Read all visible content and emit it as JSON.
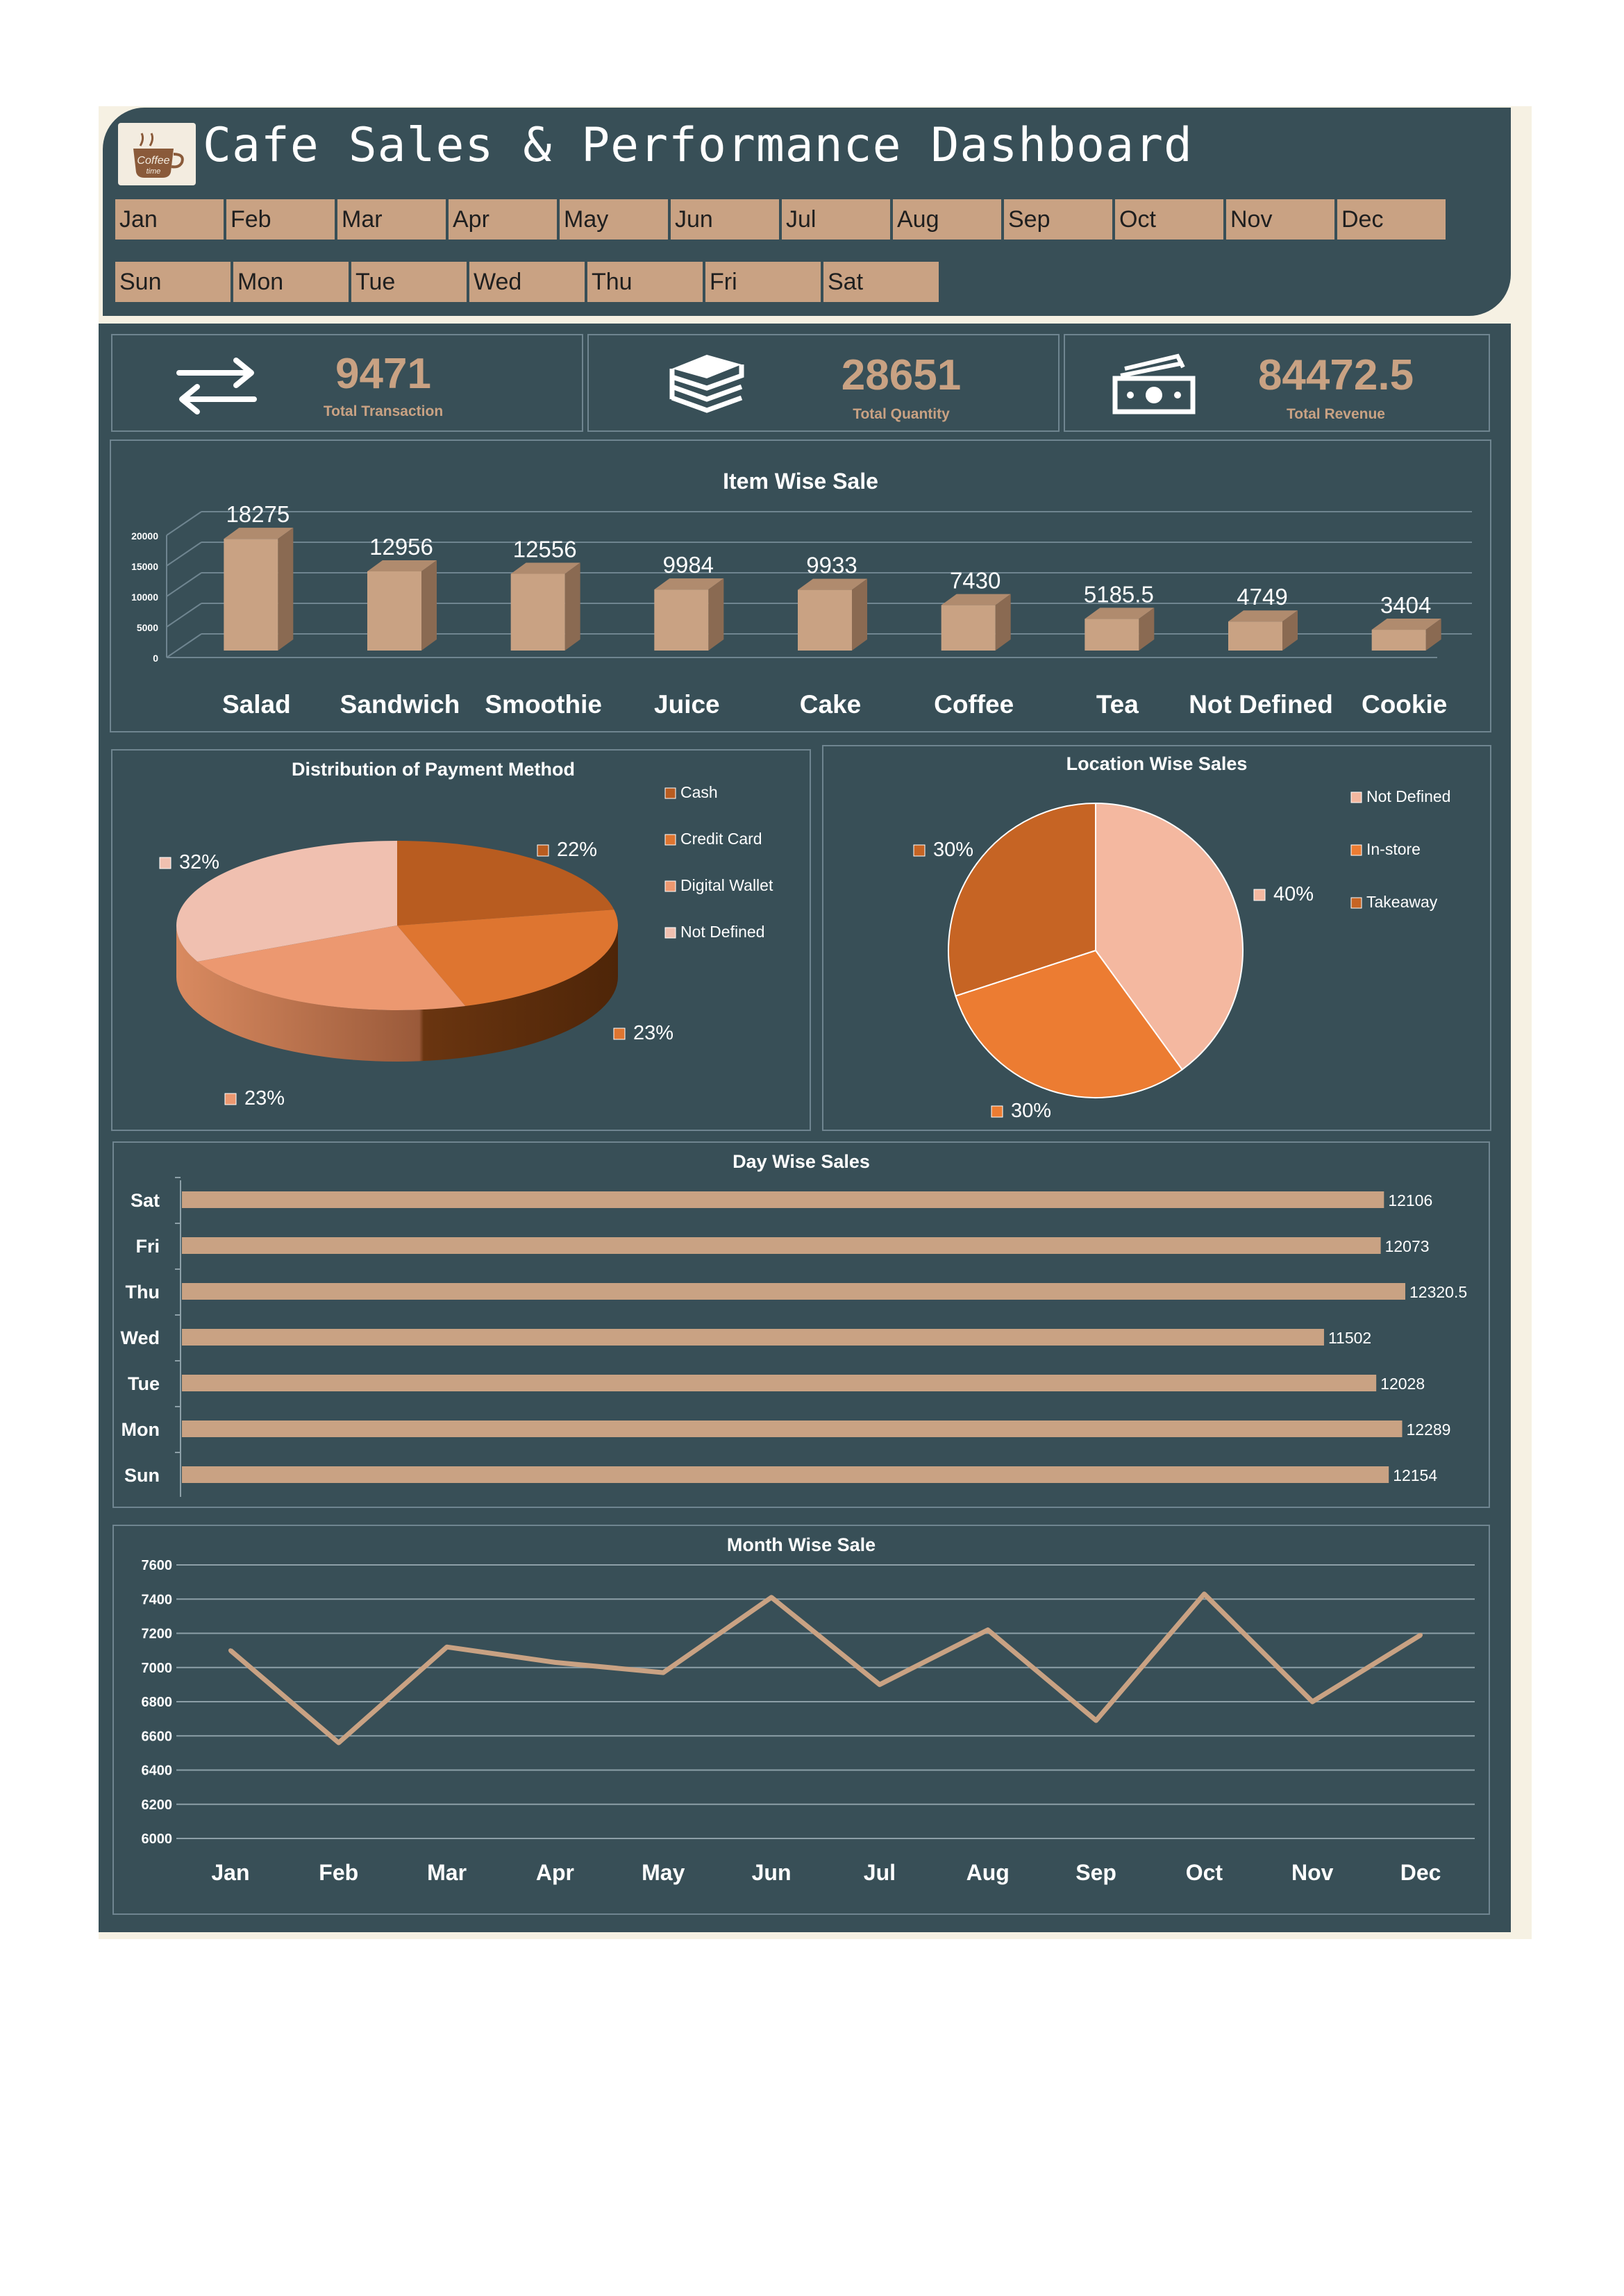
{
  "header": {
    "title": "Cafe Sales & Performance Dashboard",
    "logo_text_top": "Coffee",
    "logo_text_bottom": "time"
  },
  "slicers": {
    "months": [
      "Jan",
      "Feb",
      "Mar",
      "Apr",
      "May",
      "Jun",
      "Jul",
      "Aug",
      "Sep",
      "Oct",
      "Nov",
      "Dec"
    ],
    "days": [
      "Sun",
      "Mon",
      "Tue",
      "Wed",
      "Thu",
      "Fri",
      "Sat"
    ]
  },
  "kpis": [
    {
      "value": "9471",
      "label": "Total Transaction",
      "icon": "arrows-exchange-icon"
    },
    {
      "value": "28651",
      "label": "Total Quantity",
      "icon": "books-stack-icon"
    },
    {
      "value": "84472.5",
      "label": "Total Revenue",
      "icon": "cash-money-icon"
    }
  ],
  "colors": {
    "panel": "#384f57",
    "accent": "#c9a283",
    "card_border": "#6f8590"
  },
  "chart_data": [
    {
      "type": "bar",
      "title": "Item Wise Sale",
      "categories": [
        "Salad",
        "Sandwich",
        "Smoothie",
        "Juice",
        "Cake",
        "Coffee",
        "Tea",
        "Not Defined",
        "Cookie"
      ],
      "values": [
        18275,
        12956,
        12556,
        9984,
        9933,
        7430,
        5185.5,
        4749,
        3404
      ],
      "value_labels": [
        "18275",
        "12956",
        "12556",
        "9984",
        "9933",
        "7430",
        "5185.5",
        "4749",
        "3404"
      ],
      "yticks": [
        "0",
        "5000",
        "10000",
        "15000",
        "20000"
      ],
      "ylim": [
        0,
        20000
      ]
    },
    {
      "type": "pie",
      "title": "Distribution of Payment Method",
      "labels": [
        "Cash",
        "Credit Card",
        "Digital Wallet",
        "Not Defined"
      ],
      "values": [
        22,
        23,
        23,
        32
      ],
      "value_labels": [
        "22%",
        "23%",
        "23%",
        "32%"
      ],
      "colors": [
        "#b85c20",
        "#de7530",
        "#ec9870",
        "#f0c0b0"
      ],
      "legend": "right"
    },
    {
      "type": "pie",
      "title": "Location Wise Sales",
      "labels": [
        "Not Defined",
        "In-store",
        "Takeaway"
      ],
      "values": [
        40,
        30,
        30
      ],
      "value_labels": [
        "40%",
        "30%",
        "30%"
      ],
      "colors": [
        "#f4b8a0",
        "#ec7c32",
        "#c66424"
      ],
      "legend": "right"
    },
    {
      "type": "bar",
      "orientation": "horizontal",
      "title": "Day Wise Sales",
      "categories": [
        "Sat",
        "Fri",
        "Thu",
        "Wed",
        "Tue",
        "Mon",
        "Sun"
      ],
      "values": [
        12106,
        12073,
        12320.5,
        11502,
        12028,
        12289,
        12154
      ],
      "value_labels": [
        "12106",
        "12073",
        "12320.5",
        "11502",
        "12028",
        "12289",
        "12154"
      ]
    },
    {
      "type": "line",
      "title": "Month Wise Sale",
      "categories": [
        "Jan",
        "Feb",
        "Mar",
        "Apr",
        "May",
        "Jun",
        "Jul",
        "Aug",
        "Sep",
        "Oct",
        "Nov",
        "Dec"
      ],
      "values": [
        7100,
        6560,
        7120,
        7030,
        6970,
        7410,
        6900,
        7220,
        6690,
        7430,
        6800,
        7190
      ],
      "yticks": [
        "6000",
        "6200",
        "6400",
        "6600",
        "6800",
        "7000",
        "7200",
        "7400",
        "7600"
      ],
      "ylim": [
        6000,
        7600
      ]
    }
  ]
}
